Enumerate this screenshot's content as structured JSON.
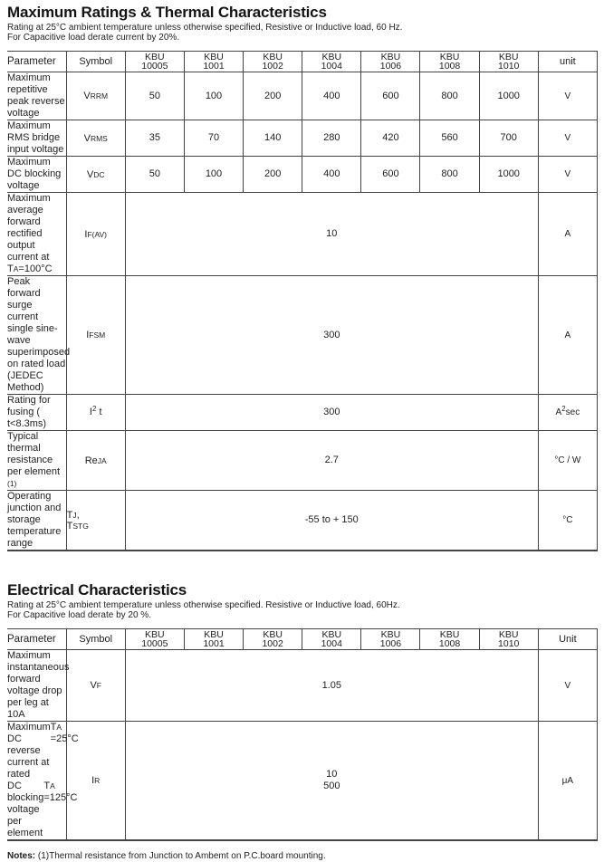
{
  "colors": {
    "background": "#ffffff",
    "text": "#1e1e1e",
    "table_line": "#434343"
  },
  "sections": [
    {
      "id": "maximum-ratings",
      "title": "Maximum Ratings & Thermal Characteristics",
      "subtitle_lines": [
        "Rating at 25°C ambient temperature unless otherwise specified, Resistive or Inductive load, 60 Hz.",
        "For Capacitive load derate current by 20%."
      ],
      "columns": {
        "parameter": "Parameter",
        "symbol": "Symbol",
        "models": [
          [
            "KBU",
            "10005"
          ],
          [
            "KBU",
            "1001"
          ],
          [
            "KBU",
            "1002"
          ],
          [
            "KBU",
            "1004"
          ],
          [
            "KBU",
            "1006"
          ],
          [
            "KBU",
            "1008"
          ],
          [
            "KBU",
            "1010"
          ]
        ],
        "unit": "unit"
      },
      "rows": [
        {
          "param": [
            {
              "text": "Maximum repetitive peak reverse voltage"
            }
          ],
          "symbol": "V_{RRM}",
          "values": [
            "50",
            "100",
            "200",
            "400",
            "600",
            "800",
            "1000"
          ],
          "unit": "V"
        },
        {
          "param": [
            {
              "text": "Maximum RMS bridge input voltage"
            }
          ],
          "symbol": "V_{RMS}",
          "values": [
            "35",
            "70",
            "140",
            "280",
            "420",
            "560",
            "700"
          ],
          "unit": "V"
        },
        {
          "param": [
            {
              "text": "Maximum DC blocking voltage"
            }
          ],
          "symbol": "V_{DC}",
          "values": [
            "50",
            "100",
            "200",
            "400",
            "600",
            "800",
            "1000"
          ],
          "unit": "V"
        },
        {
          "param": [
            {
              "text": "Maximum average forward rectified"
            },
            {
              "text": "output current at T_{A}=100°C"
            }
          ],
          "symbol": "I_{F(AV)}",
          "span": [
            "10"
          ],
          "unit": "A"
        },
        {
          "param": [
            {
              "text": "Peak forward surge current single sine-wave"
            },
            {
              "text": "superimposed on rated load (JEDEC Method)"
            }
          ],
          "symbol": "I_{FSM}",
          "span": [
            "300"
          ],
          "unit": "A"
        },
        {
          "param": [
            {
              "text": "Rating for fusing ( t<8.3ms)"
            }
          ],
          "symbol": "I^{2} t",
          "span": [
            "300"
          ],
          "unit": "A^{2}sec"
        },
        {
          "param": [
            {
              "text": "Typical  thermal resistance per element _{(1)}"
            }
          ],
          "symbol": "Re_{JA}",
          "span": [
            "2.7"
          ],
          "unit": "°C / W"
        },
        {
          "param": [
            {
              "text": "Operating junction and storage temperature"
            },
            {
              "text": "range"
            }
          ],
          "symbol": "T_{J},\nT_{STG}",
          "span": [
            "-55 to + 150"
          ],
          "unit": "°C"
        }
      ]
    },
    {
      "id": "electrical-characteristics",
      "title": "Electrical Characteristics",
      "subtitle_lines": [
        "Rating at 25°C ambient temperature unless otherwise specified. Resistive or Inductive load, 60Hz.",
        "For Capacitive load derate by 20 %."
      ],
      "columns": {
        "parameter": "Parameter",
        "symbol": "Symbol",
        "models": [
          [
            "KBU",
            "10005"
          ],
          [
            "KBU",
            "1001"
          ],
          [
            "KBU",
            "1002"
          ],
          [
            "KBU",
            "1004"
          ],
          [
            "KBU",
            "1006"
          ],
          [
            "KBU",
            "1008"
          ],
          [
            "KBU",
            "1010"
          ]
        ],
        "unit": "Unit"
      },
      "rows": [
        {
          "param": [
            {
              "text": "Maximum instantaneous forward voltage drop"
            },
            {
              "text": "per leg at 10A"
            }
          ],
          "symbol": "V_{F}",
          "span": [
            "1.05"
          ],
          "unit": "V"
        },
        {
          "param": [
            {
              "text": "Maximum DC reverse current at rated",
              "right": "T_{A} =25°C"
            },
            {
              "text": "DC blocking voltage per element",
              "right": "T_{A} =125°C"
            }
          ],
          "symbol": "I_{R}",
          "span": [
            "10",
            "500"
          ],
          "unit": "μA"
        }
      ]
    }
  ],
  "notes": {
    "label": "Notes:",
    "text": " (1)Thermal resistance from Junction to Ambemt on P.C.board mounting."
  }
}
